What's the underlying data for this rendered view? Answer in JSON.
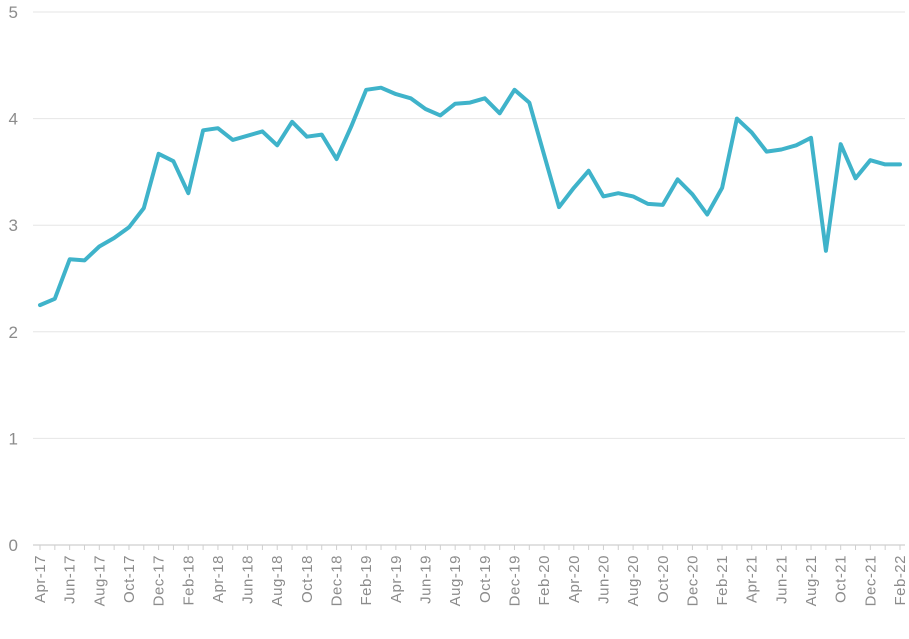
{
  "chart_data": {
    "type": "line",
    "title": "",
    "xlabel": "",
    "ylabel": "",
    "ylim": [
      0,
      5
    ],
    "yticks": [
      "0",
      "1",
      "2",
      "3",
      "4",
      "5"
    ],
    "grid": "horizontal",
    "legend": "none",
    "tick_labels": [
      "Apr-17",
      "Jun-17",
      "Aug-17",
      "Oct-17",
      "Dec-17",
      "Feb-18",
      "Apr-18",
      "Jun-18",
      "Aug-18",
      "Oct-18",
      "Dec-18",
      "Feb-19",
      "Apr-19",
      "Jun-19",
      "Aug-19",
      "Oct-19",
      "Dec-19",
      "Feb-20",
      "Apr-20",
      "Jun-20",
      "Aug-20",
      "Oct-20",
      "Dec-20",
      "Feb-21",
      "Apr-21",
      "Jun-21",
      "Aug-21",
      "Oct-21",
      "Dec-21",
      "Feb-22"
    ],
    "x": [
      "Apr-17",
      "May-17",
      "Jun-17",
      "Jul-17",
      "Aug-17",
      "Sep-17",
      "Oct-17",
      "Nov-17",
      "Dec-17",
      "Jan-18",
      "Feb-18",
      "Mar-18",
      "Apr-18",
      "May-18",
      "Jun-18",
      "Jul-18",
      "Aug-18",
      "Sep-18",
      "Oct-18",
      "Nov-18",
      "Dec-18",
      "Jan-19",
      "Feb-19",
      "Mar-19",
      "Apr-19",
      "May-19",
      "Jun-19",
      "Jul-19",
      "Aug-19",
      "Sep-19",
      "Oct-19",
      "Nov-19",
      "Dec-19",
      "Jan-20",
      "Feb-20",
      "Mar-20",
      "Apr-20",
      "May-20",
      "Jun-20",
      "Jul-20",
      "Aug-20",
      "Sep-20",
      "Oct-20",
      "Nov-20",
      "Dec-20",
      "Jan-21",
      "Feb-21",
      "Mar-21",
      "Apr-21",
      "May-21",
      "Jun-21",
      "Jul-21",
      "Aug-21",
      "Sep-21",
      "Oct-21",
      "Nov-21",
      "Dec-21",
      "Jan-22",
      "Feb-22"
    ],
    "series": [
      {
        "values": [
          2.25,
          2.31,
          2.68,
          2.67,
          2.8,
          2.88,
          2.98,
          3.16,
          3.67,
          3.6,
          3.3,
          3.89,
          3.91,
          3.8,
          3.84,
          3.88,
          3.75,
          3.97,
          3.83,
          3.85,
          3.62,
          3.93,
          4.27,
          4.29,
          4.23,
          4.19,
          4.09,
          4.03,
          4.14,
          4.15,
          4.19,
          4.05,
          4.27,
          4.15,
          3.66,
          3.17,
          3.35,
          3.51,
          3.27,
          3.3,
          3.27,
          3.2,
          3.19,
          3.43,
          3.29,
          3.1,
          3.35,
          4.0,
          3.87,
          3.69,
          3.71,
          3.75,
          3.82,
          2.76,
          3.76,
          3.44,
          3.61,
          3.57,
          3.57
        ],
        "color": "#3fb3ca"
      }
    ]
  }
}
